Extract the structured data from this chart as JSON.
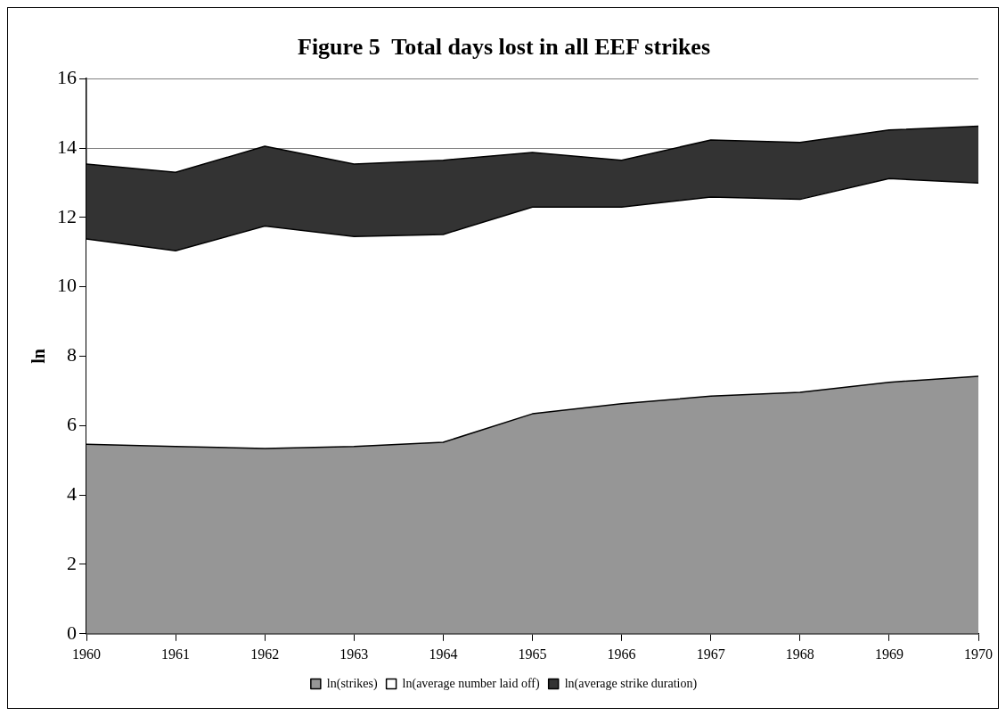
{
  "chart_data": {
    "type": "area",
    "title": "Figure 5  Total days lost in all EEF strikes",
    "ylabel": "ln",
    "categories": [
      "1960",
      "1961",
      "1962",
      "1963",
      "1964",
      "1965",
      "1966",
      "1967",
      "1968",
      "1969",
      "1970"
    ],
    "stacked": true,
    "ylim": [
      0,
      16
    ],
    "yticks": [
      0,
      2,
      4,
      6,
      8,
      10,
      12,
      14,
      16
    ],
    "grid": "y",
    "legend": "bottom",
    "series": [
      {
        "name": "ln(strikes)",
        "color": "#969696",
        "values": [
          5.46,
          5.4,
          5.34,
          5.4,
          5.52,
          6.34,
          6.63,
          6.85,
          6.96,
          7.25,
          7.42
        ]
      },
      {
        "name": "ln(average number laid off)",
        "color": "#ffffff",
        "values": [
          5.92,
          5.64,
          6.41,
          6.05,
          5.99,
          5.96,
          5.67,
          5.74,
          5.56,
          5.87,
          5.57
        ]
      },
      {
        "name": "ln(average strike duration)",
        "color": "#333333",
        "values": [
          2.16,
          2.26,
          2.3,
          2.09,
          2.14,
          1.57,
          1.35,
          1.64,
          1.64,
          1.4,
          1.64
        ]
      }
    ]
  }
}
